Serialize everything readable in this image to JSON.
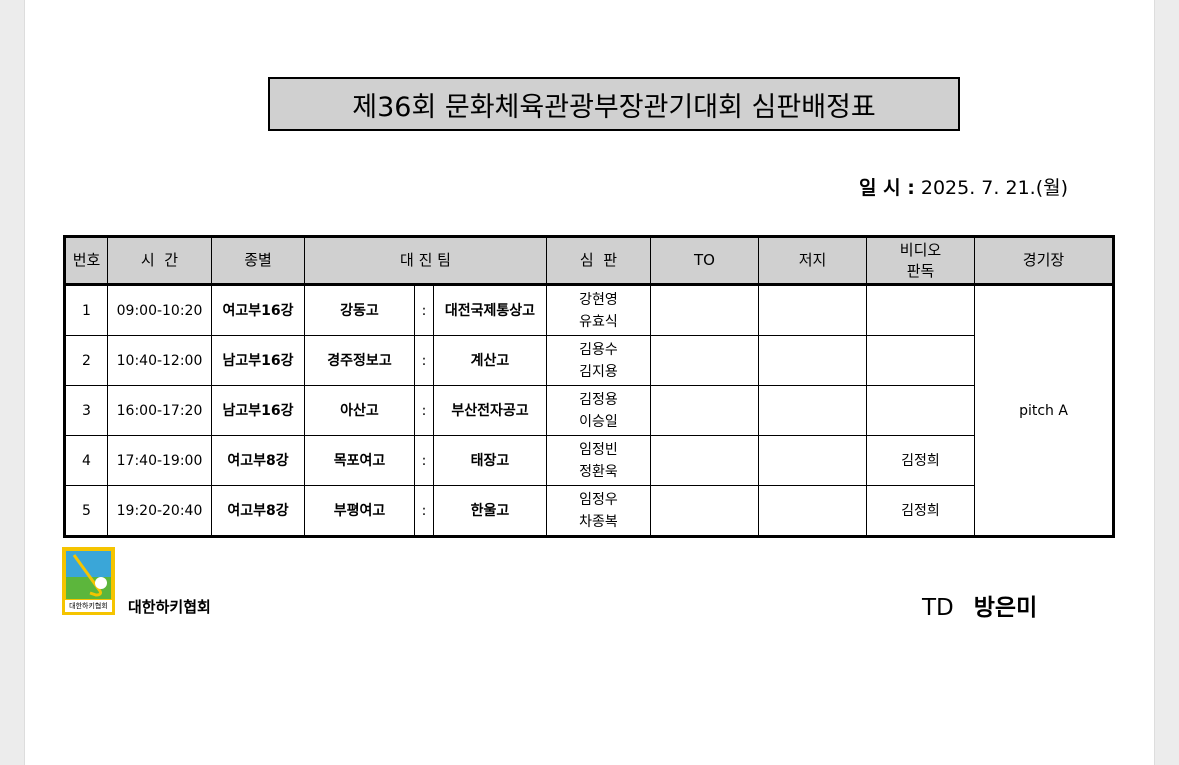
{
  "title": "제36회 문화체육관광부장관기대회 심판배정표",
  "date": {
    "label": "일 시 :",
    "value": "2025. 7. 21.(월)"
  },
  "table": {
    "headers": [
      "번호",
      "시  간",
      "종별",
      "대 진 팀",
      "심  판",
      "TO",
      "저지",
      "비디오\n판독",
      "경기장"
    ],
    "venue": "pitch A",
    "rows": [
      {
        "no": "1",
        "time": "09:00-10:20",
        "category": "여고부16강",
        "team_a": "강동고",
        "sep": ":",
        "team_b": "대전국제통상고",
        "referees": [
          "강현영",
          "유효식"
        ],
        "to": "",
        "judge": "",
        "video": ""
      },
      {
        "no": "2",
        "time": "10:40-12:00",
        "category": "남고부16강",
        "team_a": "경주정보고",
        "sep": ":",
        "team_b": "계산고",
        "referees": [
          "김용수",
          "김지용"
        ],
        "to": "",
        "judge": "",
        "video": ""
      },
      {
        "no": "3",
        "time": "16:00-17:20",
        "category": "남고부16강",
        "team_a": "아산고",
        "sep": ":",
        "team_b": "부산전자공고",
        "referees": [
          "김정용",
          "이승일"
        ],
        "to": "",
        "judge": "",
        "video": ""
      },
      {
        "no": "4",
        "time": "17:40-19:00",
        "category": "여고부8강",
        "team_a": "목포여고",
        "sep": ":",
        "team_b": "태장고",
        "referees": [
          "임정빈",
          "정환욱"
        ],
        "to": "",
        "judge": "",
        "video": "김정희"
      },
      {
        "no": "5",
        "time": "19:20-20:40",
        "category": "여고부8강",
        "team_a": "부평여고",
        "sep": ":",
        "team_b": "한울고",
        "referees": [
          "임정우",
          "차종복"
        ],
        "to": "",
        "judge": "",
        "video": "김정희"
      }
    ]
  },
  "footer": {
    "logo_text": "KOREA HOCKEY ASSOCIATION",
    "logo_label": "대한하키협회",
    "org": "대한하키협회",
    "td_label": "TD",
    "td_name": "방은미"
  }
}
